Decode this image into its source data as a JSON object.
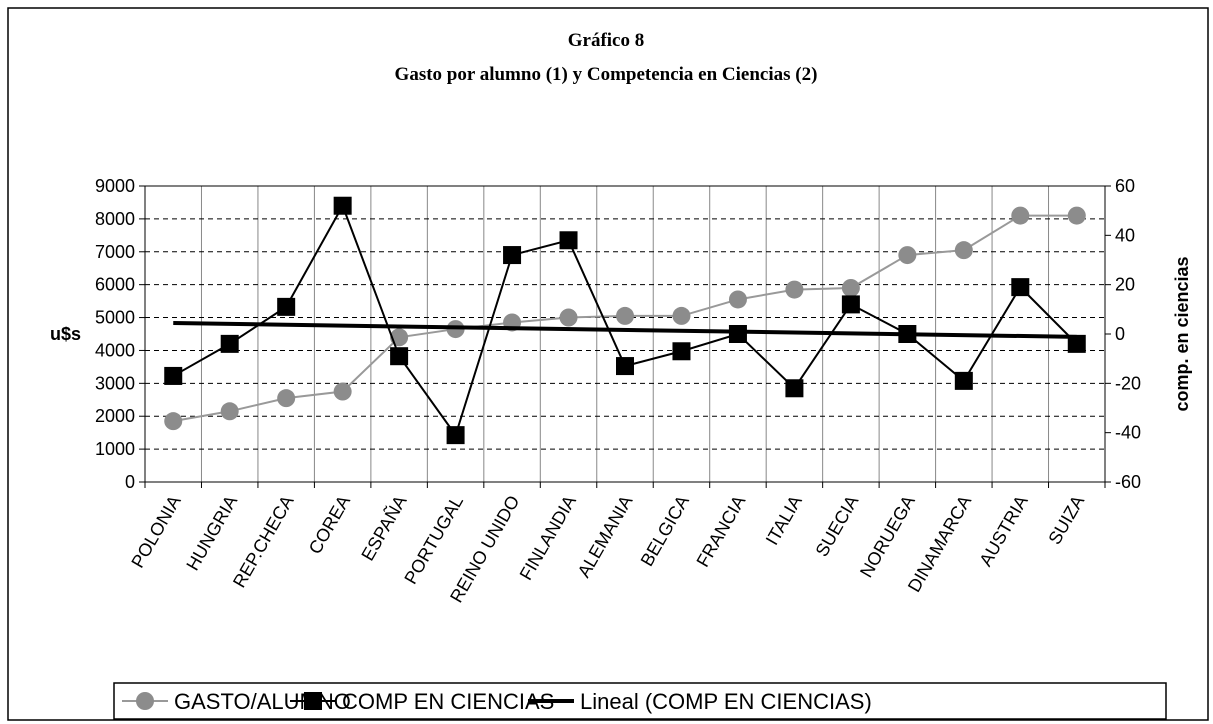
{
  "chart_data": {
    "type": "line",
    "title": "Gráfico 8",
    "subtitle": "Gasto por alumno (1) y Competencia en Ciencias (2)",
    "ylabel": "u$s",
    "y2label": "comp. en ciencias",
    "categories": [
      "POLONIA",
      "HUNGRIA",
      "REP.CHECA",
      "COREA",
      "ESPAÑA",
      "PORTUGAL",
      "REINO UNIDO",
      "FINLANDIA",
      "ALEMANIA",
      "BELGICA",
      "FRANCIA",
      "ITALIA",
      "SUECIA",
      "NORUEGA",
      "DINAMARCA",
      "AUSTRIA",
      "SUIZA"
    ],
    "series": [
      {
        "name": "GASTO/ALUMNO",
        "color": "#8c8c8c",
        "marker": "circle",
        "axis": "y",
        "values": [
          1850,
          2150,
          2550,
          2750,
          4400,
          4650,
          4850,
          5000,
          5050,
          5050,
          5550,
          5850,
          5900,
          6900,
          7050,
          8100,
          8100
        ]
      },
      {
        "name": "COMP EN CIENCIAS",
        "color": "#000000",
        "marker": "square",
        "axis": "y2",
        "values": [
          -17,
          -4,
          11,
          52,
          -9,
          -41,
          32,
          38,
          -13,
          -7,
          0,
          -22,
          12,
          0,
          -19,
          19,
          -4
        ]
      },
      {
        "name": "Lineal (COMP EN CIENCIAS)",
        "color": "#000000",
        "type": "linear-trend",
        "axis": "y2"
      }
    ],
    "ylim": [
      0,
      9000
    ],
    "yticks": [
      0,
      1000,
      2000,
      3000,
      4000,
      5000,
      6000,
      7000,
      8000,
      9000
    ],
    "y2lim": [
      -60,
      60
    ],
    "y2ticks": [
      -60,
      -40,
      -20,
      0,
      20,
      40,
      60
    ],
    "grid": true,
    "legend": "bottom"
  }
}
